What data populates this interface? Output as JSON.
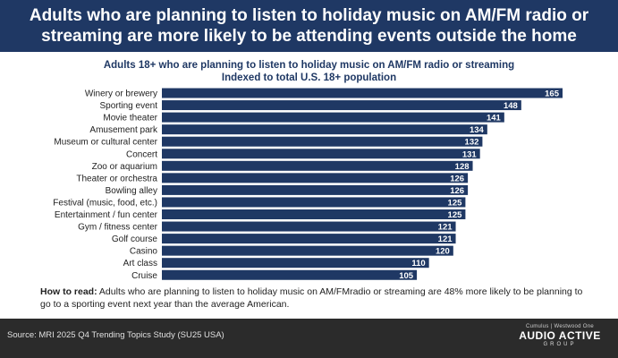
{
  "header": {
    "title": "Adults who are planning to listen to holiday music on AM/FM radio or streaming are more likely to be attending events outside the home"
  },
  "chart_data": {
    "type": "bar",
    "orientation": "horizontal",
    "title": "Adults 18+ who are planning to listen to holiday music on AM/FM radio or streaming",
    "subtitle": "Indexed to total U.S. 18+ population",
    "categories": [
      "Winery or brewery",
      "Sporting event",
      "Movie theater",
      "Amusement park",
      "Museum or cultural center",
      "Concert",
      "Zoo or aquarium",
      "Theater or orchestra",
      "Bowling alley",
      "Festival (music, food, etc.)",
      "Entertainment / fun center",
      "Gym / fitness center",
      "Golf course",
      "Casino",
      "Art class",
      "Cruise"
    ],
    "values": [
      165,
      148,
      141,
      134,
      132,
      131,
      128,
      126,
      126,
      125,
      125,
      121,
      121,
      120,
      110,
      105
    ],
    "xlim": [
      0,
      165
    ],
    "bar_color": "#1f3864"
  },
  "how_to_read": {
    "label": "How to read:",
    "text": " Adults who are planning to listen to holiday music on AM/FMradio or streaming are 48% more likely to be planning to go to a sporting event next year than the average American."
  },
  "footer": {
    "source": "Source: MRI 2025 Q4 Trending Topics Study (SU25 USA)",
    "brand_top": "Cumulus | Westwood One",
    "brand_main": "AUDIO ACTIVE",
    "brand_sub": "GROUP"
  }
}
